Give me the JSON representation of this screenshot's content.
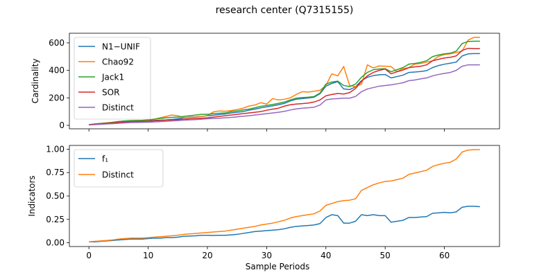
{
  "title": "research center (Q7315155)",
  "chart_data": [
    {
      "type": "line",
      "ylabel": "Cardinality",
      "xlabel": "",
      "xlim": [
        -3.3,
        69.3
      ],
      "ylim": [
        -25,
        670
      ],
      "x_ticks": [
        0,
        10,
        20,
        30,
        40,
        50,
        60
      ],
      "y_ticks": [
        0,
        200,
        400,
        600
      ],
      "grid": false,
      "legend_position": "upper left",
      "series": [
        {
          "name": "N1−UNIF",
          "color": "#1f77b4",
          "values": [
            5,
            8,
            12,
            15,
            18,
            22,
            28,
            30,
            32,
            33,
            35,
            36,
            38,
            40,
            43,
            48,
            55,
            60,
            62,
            65,
            70,
            74,
            79,
            83,
            90,
            95,
            100,
            110,
            118,
            127,
            135,
            142,
            150,
            160,
            178,
            190,
            195,
            199,
            205,
            230,
            285,
            305,
            318,
            265,
            260,
            280,
            325,
            350,
            362,
            368,
            370,
            345,
            355,
            365,
            385,
            388,
            392,
            398,
            420,
            435,
            445,
            452,
            460,
            505,
            520,
            522,
            522
          ]
        },
        {
          "name": "Chao92",
          "color": "#ff7f0e",
          "values": [
            5,
            10,
            14,
            18,
            22,
            28,
            30,
            32,
            34,
            35,
            38,
            45,
            55,
            65,
            75,
            70,
            55,
            58,
            60,
            63,
            72,
            98,
            105,
            103,
            108,
            115,
            125,
            140,
            148,
            165,
            155,
            195,
            185,
            190,
            200,
            225,
            245,
            242,
            248,
            255,
            290,
            375,
            360,
            428,
            290,
            282,
            300,
            440,
            418,
            432,
            430,
            428,
            390,
            412,
            420,
            445,
            450,
            460,
            470,
            502,
            515,
            520,
            530,
            540,
            620,
            640,
            640
          ]
        },
        {
          "name": "Jack1",
          "color": "#2ca02c",
          "values": [
            5,
            10,
            14,
            18,
            22,
            28,
            32,
            35,
            36,
            37,
            40,
            45,
            50,
            55,
            58,
            60,
            65,
            70,
            75,
            80,
            80,
            85,
            88,
            90,
            100,
            105,
            112,
            118,
            128,
            138,
            145,
            152,
            160,
            170,
            185,
            198,
            202,
            205,
            210,
            235,
            300,
            315,
            322,
            290,
            282,
            300,
            350,
            385,
            405,
            410,
            412,
            390,
            405,
            420,
            445,
            450,
            458,
            470,
            500,
            512,
            520,
            525,
            540,
            595,
            610,
            612,
            612
          ]
        },
        {
          "name": "SOR",
          "color": "#d62728",
          "values": [
            5,
            8,
            12,
            15,
            18,
            22,
            25,
            27,
            28,
            29,
            30,
            33,
            35,
            38,
            40,
            42,
            45,
            48,
            50,
            52,
            55,
            60,
            65,
            70,
            75,
            80,
            85,
            90,
            95,
            100,
            110,
            118,
            125,
            140,
            150,
            155,
            158,
            162,
            170,
            185,
            215,
            225,
            232,
            228,
            238,
            268,
            320,
            360,
            385,
            400,
            410,
            375,
            390,
            402,
            420,
            425,
            430,
            440,
            470,
            480,
            490,
            495,
            505,
            545,
            560,
            558,
            558
          ]
        },
        {
          "name": "Distinct",
          "color": "#9467bd",
          "values": [
            3,
            5,
            8,
            10,
            12,
            15,
            18,
            20,
            21,
            22,
            23,
            25,
            27,
            30,
            32,
            35,
            38,
            40,
            42,
            45,
            48,
            50,
            52,
            55,
            58,
            62,
            66,
            70,
            75,
            80,
            85,
            90,
            95,
            102,
            112,
            120,
            125,
            128,
            132,
            148,
            185,
            192,
            195,
            198,
            198,
            210,
            245,
            265,
            275,
            285,
            290,
            295,
            302,
            310,
            325,
            330,
            338,
            345,
            360,
            370,
            378,
            385,
            400,
            430,
            440,
            440,
            440
          ]
        }
      ]
    },
    {
      "type": "line",
      "ylabel": "Indicators",
      "xlabel": "Sample Periods",
      "xlim": [
        -3.3,
        69.3
      ],
      "ylim": [
        -0.04,
        1.04
      ],
      "x_ticks": [
        0,
        10,
        20,
        30,
        40,
        50,
        60
      ],
      "y_ticks": [
        0.0,
        0.25,
        0.5,
        0.75,
        1.0
      ],
      "y_tick_labels": [
        "0.00",
        "0.25",
        "0.50",
        "0.75",
        "1.00"
      ],
      "x_tick_labels": [
        "0",
        "10",
        "20",
        "30",
        "40",
        "50",
        "60"
      ],
      "grid": false,
      "legend_position": "upper left",
      "series": [
        {
          "name": "f₁",
          "color": "#1f77b4",
          "values": [
            0.01,
            0.01,
            0.015,
            0.02,
            0.025,
            0.03,
            0.035,
            0.04,
            0.04,
            0.04,
            0.045,
            0.05,
            0.05,
            0.055,
            0.055,
            0.06,
            0.07,
            0.072,
            0.075,
            0.08,
            0.08,
            0.078,
            0.08,
            0.08,
            0.085,
            0.09,
            0.1,
            0.11,
            0.12,
            0.125,
            0.13,
            0.135,
            0.14,
            0.15,
            0.165,
            0.175,
            0.18,
            0.185,
            0.19,
            0.205,
            0.27,
            0.3,
            0.29,
            0.21,
            0.21,
            0.23,
            0.3,
            0.29,
            0.3,
            0.29,
            0.29,
            0.22,
            0.23,
            0.24,
            0.27,
            0.27,
            0.275,
            0.28,
            0.315,
            0.32,
            0.325,
            0.32,
            0.33,
            0.38,
            0.39,
            0.39,
            0.385
          ]
        },
        {
          "name": "Distinct",
          "color": "#ff7f0e",
          "values": [
            0.01,
            0.015,
            0.02,
            0.025,
            0.03,
            0.04,
            0.045,
            0.05,
            0.05,
            0.05,
            0.055,
            0.06,
            0.065,
            0.07,
            0.075,
            0.08,
            0.09,
            0.095,
            0.1,
            0.105,
            0.11,
            0.115,
            0.12,
            0.125,
            0.135,
            0.145,
            0.155,
            0.165,
            0.175,
            0.19,
            0.2,
            0.21,
            0.225,
            0.24,
            0.265,
            0.28,
            0.29,
            0.3,
            0.31,
            0.34,
            0.4,
            0.42,
            0.44,
            0.45,
            0.455,
            0.47,
            0.56,
            0.59,
            0.62,
            0.64,
            0.655,
            0.66,
            0.675,
            0.69,
            0.73,
            0.745,
            0.76,
            0.775,
            0.815,
            0.835,
            0.85,
            0.86,
            0.895,
            0.97,
            0.99,
            0.995,
            0.995
          ]
        }
      ]
    }
  ]
}
